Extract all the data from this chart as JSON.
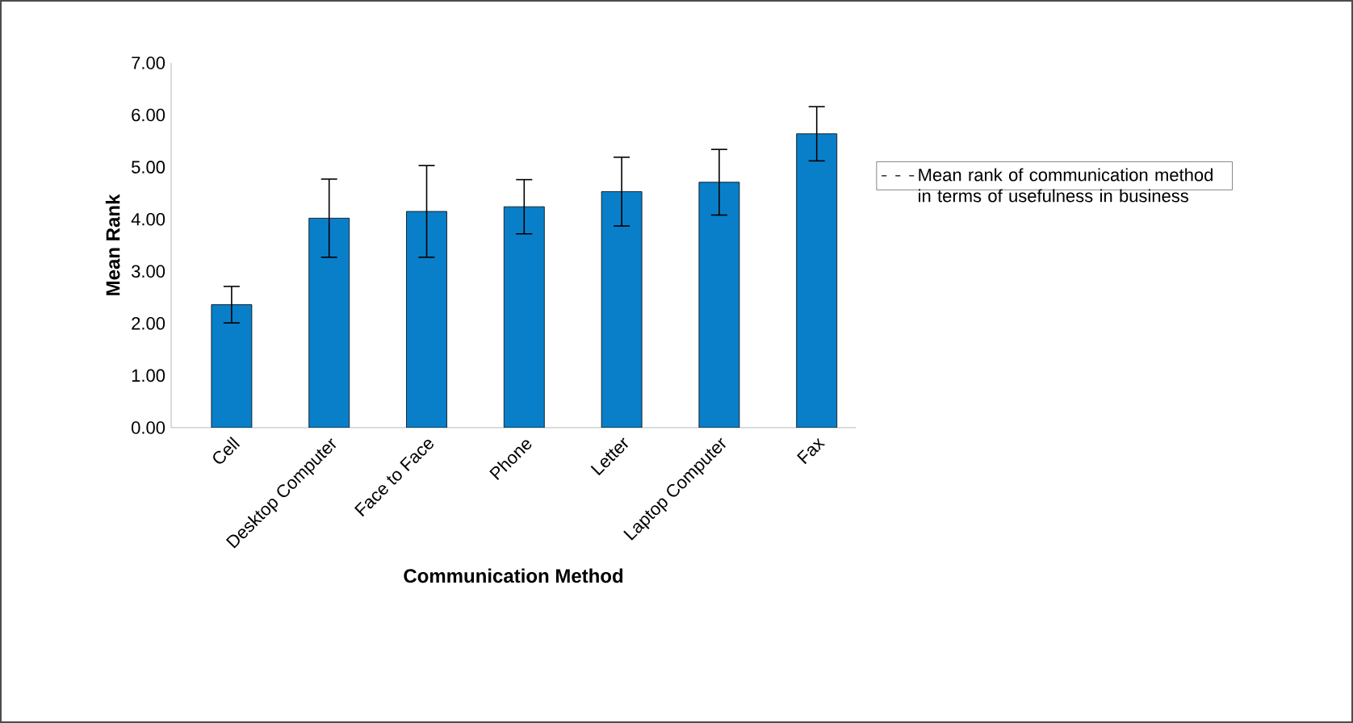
{
  "chart_data": {
    "type": "bar",
    "xlabel": "Communication Method",
    "ylabel": "Mean Rank",
    "categories": [
      "Cell",
      "Desktop Computer",
      "Face to Face",
      "Phone",
      "Letter",
      "Laptop Computer",
      "Fax"
    ],
    "series": [
      {
        "name": "Mean rank of communication method in terms of usefulness in business",
        "color": "#0a7fc9",
        "values": [
          2.36,
          4.02,
          4.15,
          4.24,
          4.53,
          4.71,
          5.64
        ],
        "errors": [
          0.35,
          0.75,
          0.88,
          0.52,
          0.66,
          0.63,
          0.52
        ]
      }
    ],
    "ylim": [
      0,
      7
    ],
    "yticks": [
      {
        "value": 0,
        "label": "0.00"
      },
      {
        "value": 1,
        "label": "1.00"
      },
      {
        "value": 2,
        "label": "2.00"
      },
      {
        "value": 3,
        "label": "3.00"
      },
      {
        "value": 4,
        "label": "4.00"
      },
      {
        "value": 5,
        "label": "5.00"
      },
      {
        "value": 6,
        "label": "6.00"
      },
      {
        "value": 7,
        "label": "7.00"
      }
    ],
    "legend": "right",
    "grid": false
  }
}
